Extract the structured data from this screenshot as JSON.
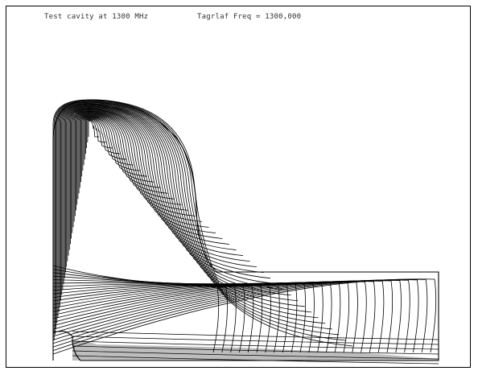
{
  "header": {
    "title": "Test cavity at 1300 MHz",
    "frequency_label": "Tagrlaf Freq = 1300,000"
  },
  "plot": {
    "line_color": "#000000",
    "fill_color": "#bdbdbd",
    "contour_count_cell": 38,
    "contour_count_pipe": 26
  }
}
